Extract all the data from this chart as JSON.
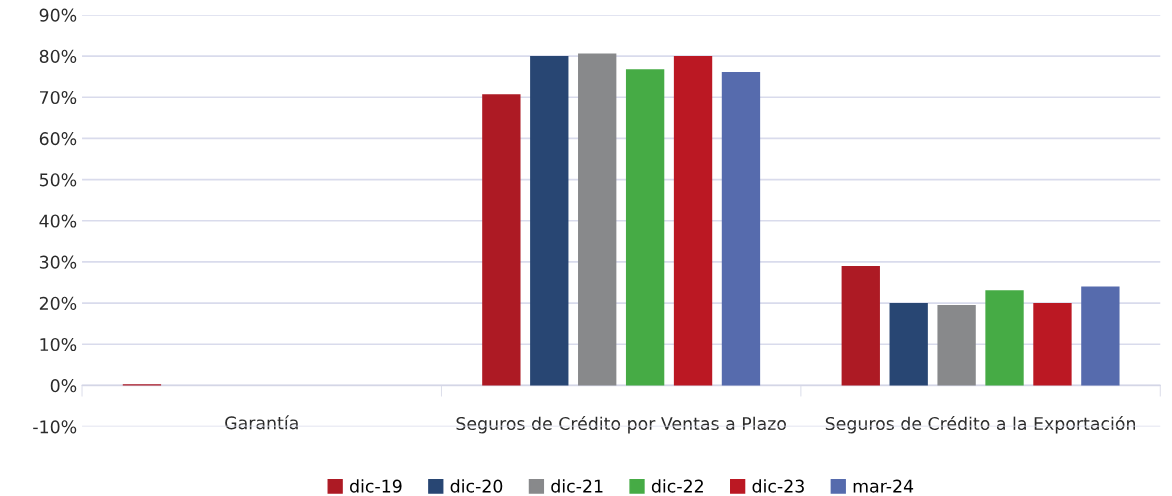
{
  "chart_data": {
    "type": "bar",
    "categories": [
      "Garantía",
      "Seguros de Crédito por Ventas a Plazo",
      "Seguros de Crédito a la Exportación"
    ],
    "series": [
      {
        "name": "dic-19",
        "color": "#ad1a24",
        "values": [
          0.3,
          70.7,
          29.0
        ]
      },
      {
        "name": "dic-20",
        "color": "#284673",
        "values": [
          0,
          80.0,
          20.0
        ]
      },
      {
        "name": "dic-21",
        "color": "#88898b",
        "values": [
          0,
          80.6,
          19.5
        ]
      },
      {
        "name": "dic-22",
        "color": "#46ab45",
        "values": [
          null,
          76.8,
          23.1
        ]
      },
      {
        "name": "dic-23",
        "color": "#bb1823",
        "values": [
          null,
          80.0,
          20.0
        ]
      },
      {
        "name": "mar-24",
        "color": "#566bad",
        "values": [
          null,
          76.1,
          24.0
        ]
      }
    ],
    "ylim": [
      -10,
      90
    ],
    "yticks": [
      {
        "value": -10,
        "label": "-10%"
      },
      {
        "value": 0,
        "label": "0%"
      },
      {
        "value": 10,
        "label": "10%"
      },
      {
        "value": 20,
        "label": "20%"
      },
      {
        "value": 30,
        "label": "30%"
      },
      {
        "value": 40,
        "label": "40%"
      },
      {
        "value": 50,
        "label": "50%"
      },
      {
        "value": 60,
        "label": "60%"
      },
      {
        "value": 70,
        "label": "70%"
      },
      {
        "value": 80,
        "label": "80%"
      },
      {
        "value": 90,
        "label": "90%"
      }
    ],
    "grid": "y",
    "legend": "bottom"
  }
}
